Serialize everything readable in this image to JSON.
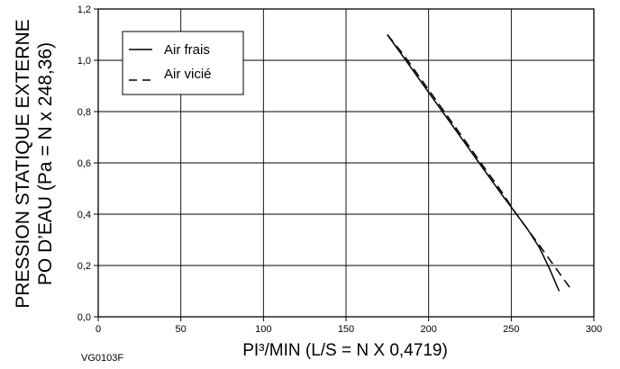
{
  "chart_data": {
    "type": "line",
    "ylabel_line1": "PRESSION STATIQUE EXTERNE",
    "ylabel_line2": "PO D’EAU (Pa = N x 248,36)",
    "xlabel": "PI³/MIN (L/S = N X 0,4719)",
    "xlim": [
      0,
      300
    ],
    "ylim": [
      0,
      1.2
    ],
    "x_ticks": [
      "0",
      "50",
      "100",
      "150",
      "200",
      "250",
      "300"
    ],
    "y_ticks": [
      "0,0",
      "0,2",
      "0,4",
      "0,6",
      "0,8",
      "1,0",
      "1,2"
    ],
    "grid": true,
    "legend_position": "top-left",
    "series": [
      {
        "name": "Air frais",
        "style": "solid",
        "x": [
          175,
          185,
          195,
          205,
          215,
          225,
          235,
          245,
          252,
          260,
          267,
          273,
          279
        ],
        "y": [
          1.1,
          1.01,
          0.92,
          0.83,
          0.74,
          0.65,
          0.56,
          0.47,
          0.41,
          0.34,
          0.27,
          0.19,
          0.1
        ]
      },
      {
        "name": "Air vicié",
        "style": "dashed",
        "x": [
          175,
          185,
          195,
          205,
          215,
          225,
          235,
          245,
          252,
          260,
          268,
          278,
          287
        ],
        "y": [
          1.1,
          1.02,
          0.93,
          0.84,
          0.75,
          0.66,
          0.57,
          0.48,
          0.41,
          0.34,
          0.27,
          0.18,
          0.1
        ]
      }
    ]
  },
  "figure_code": "VG0103F",
  "colors": {
    "line": "#000000",
    "grid": "#000000",
    "background": "#ffffff"
  }
}
